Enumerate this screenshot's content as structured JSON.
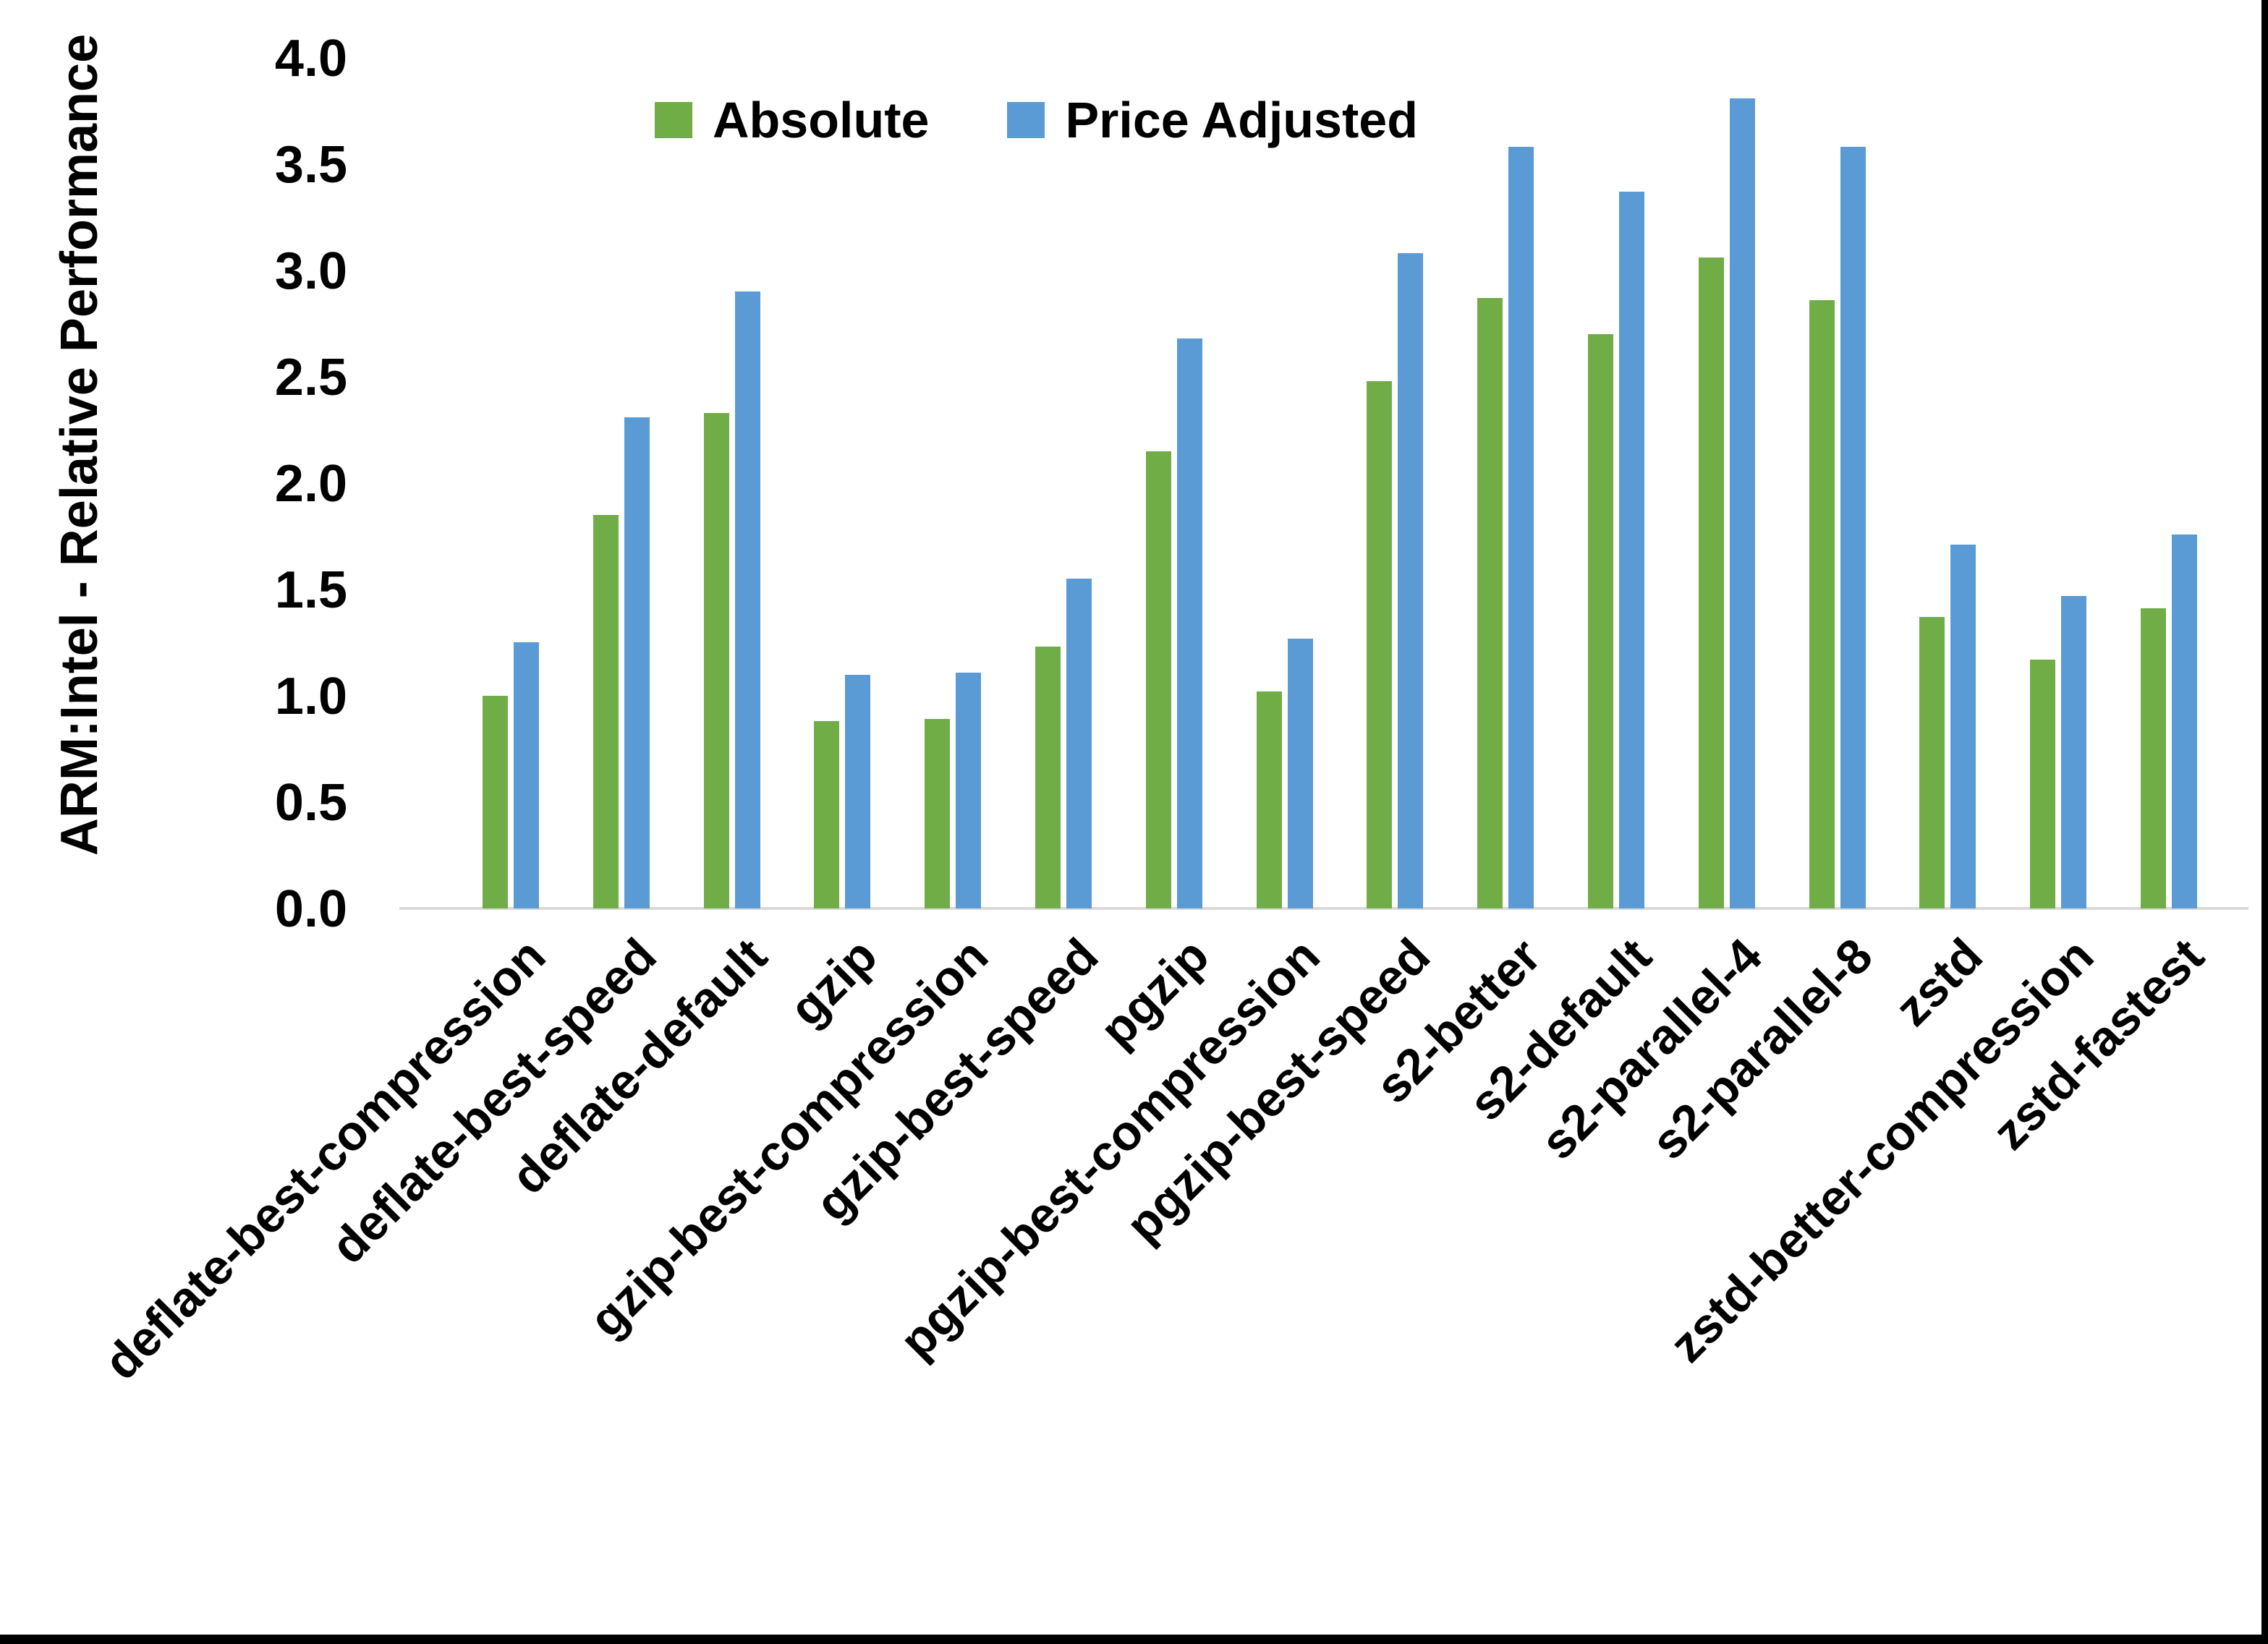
{
  "chart_data": {
    "type": "bar",
    "title": "",
    "xlabel": "",
    "ylabel": "ARM:Intel - Relative Performance",
    "ylim": [
      0.0,
      4.0
    ],
    "ytick_step": 0.5,
    "ytick_labels": [
      "0.0",
      "0.5",
      "1.0",
      "1.5",
      "2.0",
      "2.5",
      "3.0",
      "3.5",
      "4.0"
    ],
    "grid": false,
    "legend_position": "top-center",
    "axis_line_color": "#d9d9d9",
    "categories": [
      "deflate-best-compression",
      "deflate-best-speed",
      "deflate-default",
      "gzip",
      "gzip-best-compression",
      "gzip-best-speed",
      "pgzip",
      "pgzip-best-compression",
      "pgzip-best-speed",
      "s2-better",
      "s2-default",
      "s2-parallel-4",
      "s2-parallel-8",
      "zstd",
      "zstd-better-compression",
      "zstd-fastest"
    ],
    "series": [
      {
        "name": "Absolute",
        "color": "#70AD47",
        "values": [
          1.0,
          1.85,
          2.33,
          0.88,
          0.89,
          1.23,
          2.15,
          1.02,
          2.48,
          2.87,
          2.7,
          3.06,
          2.86,
          1.37,
          1.17,
          1.41
        ]
      },
      {
        "name": "Price Adjusted",
        "color": "#5B9BD5",
        "values": [
          1.25,
          2.31,
          2.9,
          1.1,
          1.11,
          1.55,
          2.68,
          1.27,
          3.08,
          3.58,
          3.37,
          3.81,
          3.58,
          1.71,
          1.47,
          1.76
        ]
      }
    ]
  },
  "legend": {
    "items": [
      {
        "label": "Absolute",
        "color": "#70AD47"
      },
      {
        "label": "Price Adjusted",
        "color": "#5B9BD5"
      }
    ]
  },
  "frame": {
    "border_color": "#000000"
  }
}
